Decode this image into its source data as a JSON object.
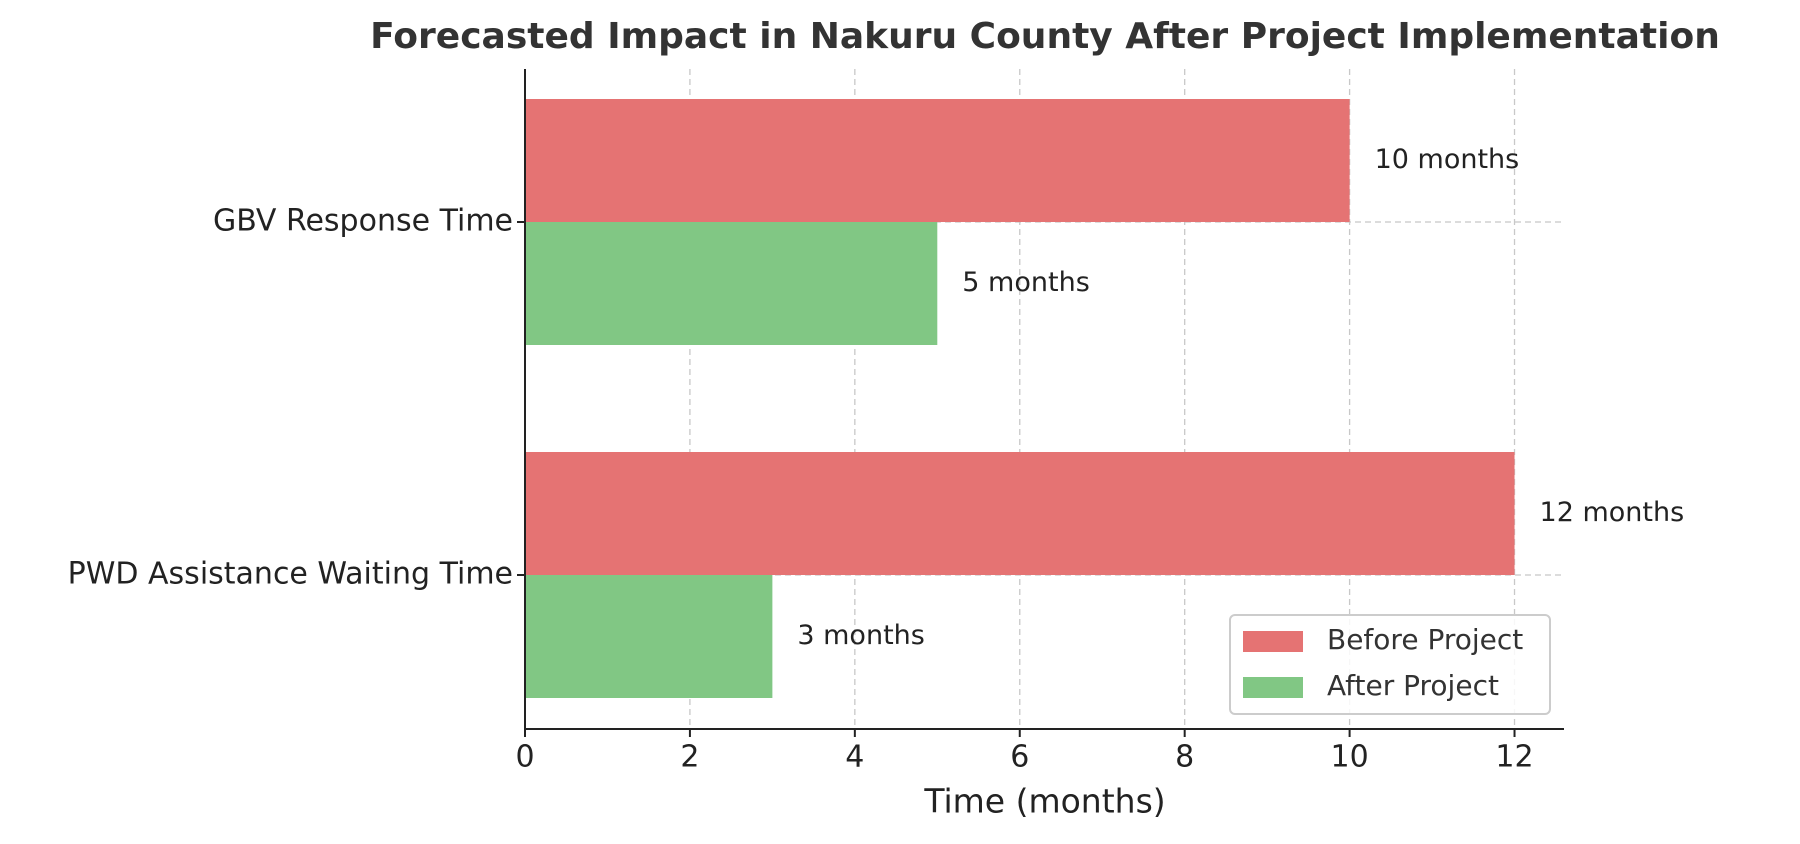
{
  "chart_data": {
    "type": "barh",
    "title": "Forecasted Impact in Nakuru County After Project Implementation",
    "x_label": "Time (months)",
    "categories": [
      "GBV Response Time",
      "PWD Assistance Waiting Time"
    ],
    "series": [
      {
        "name": "Before Project",
        "color": "#e57373",
        "values": [
          10,
          12
        ],
        "value_labels": [
          "10 months",
          "12 months"
        ]
      },
      {
        "name": "After Project",
        "color": "#81c784",
        "values": [
          5,
          3
        ],
        "value_labels": [
          "5 months",
          "3 months"
        ]
      }
    ],
    "xlim": [
      0,
      12.6
    ],
    "xticks": [
      0,
      2,
      4,
      6,
      8,
      10,
      12
    ],
    "grid": true,
    "legend": "lower right"
  }
}
